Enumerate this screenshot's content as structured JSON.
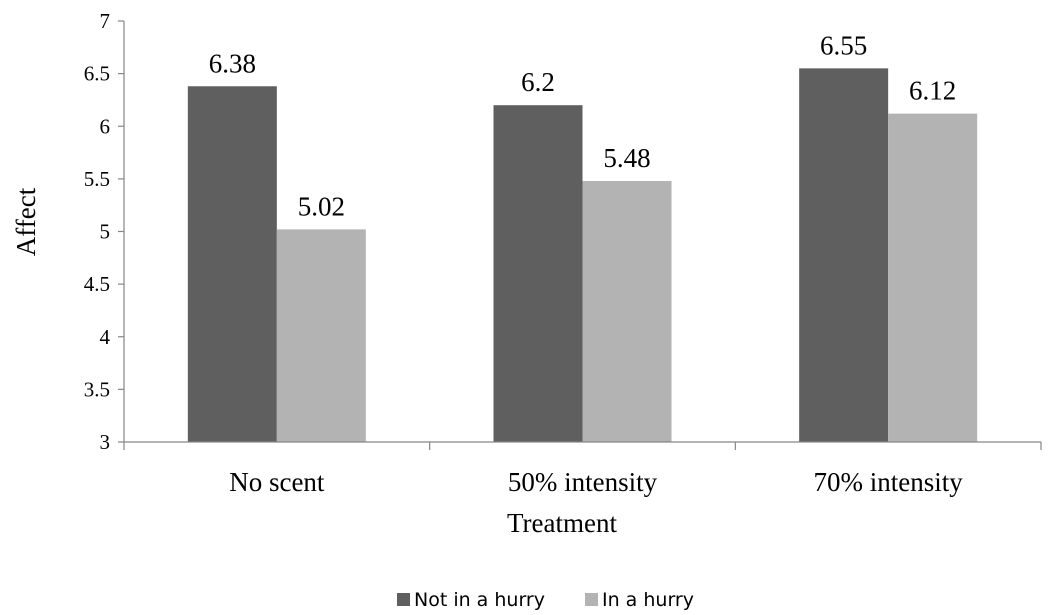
{
  "chart_data": {
    "type": "bar",
    "title": "",
    "xlabel": "Treatment",
    "ylabel": "Affect",
    "ylim": [
      3,
      7
    ],
    "yticks": [
      "3",
      "3.5",
      "4",
      "4.5",
      "5",
      "5.5",
      "6",
      "6.5",
      "7"
    ],
    "categories": [
      "No scent",
      "50% intensity",
      "70% intensity"
    ],
    "series": [
      {
        "name": "Not in a hurry",
        "values": [
          6.38,
          6.2,
          6.55
        ],
        "labels": [
          "6.38",
          "6.2",
          "6.55"
        ],
        "color": "#5f5f5f"
      },
      {
        "name": "In a hurry",
        "values": [
          5.02,
          5.48,
          6.12
        ],
        "labels": [
          "5.02",
          "5.48",
          "6.12"
        ],
        "color": "#b3b3b3"
      }
    ],
    "grid": false,
    "legend_position": "bottom"
  }
}
